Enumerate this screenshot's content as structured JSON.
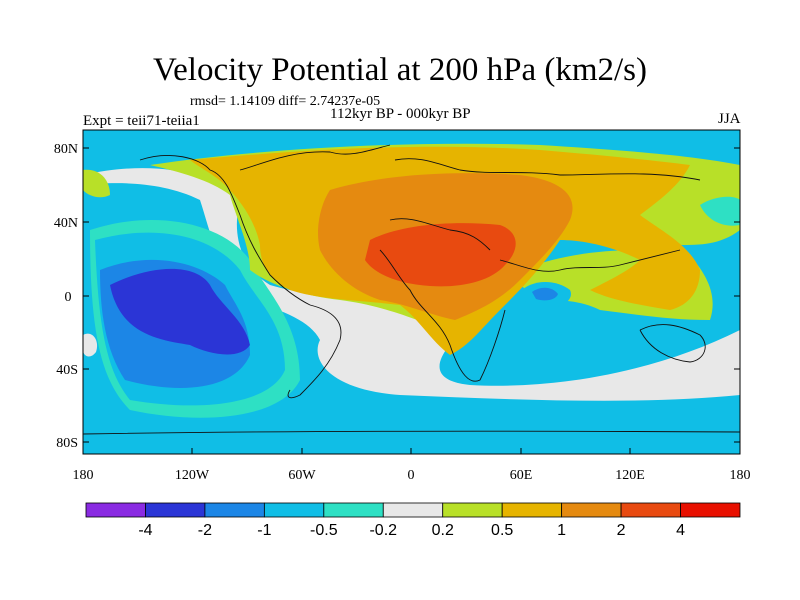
{
  "title": "Velocity Potential at 200 hPa (km2/s)",
  "stats_line": "rmsd= 1.14109 diff= 2.74237e-05",
  "subtitle": "112kyr BP - 000kyr BP",
  "left_label": "Expt = teii71-teiia1",
  "right_label": "JJA",
  "map": {
    "projection": "cylindrical-equidistant",
    "lat_ticks": [
      "80N",
      "40N",
      "0",
      "40S",
      "80S"
    ],
    "lon_ticks": [
      "180",
      "120W",
      "60W",
      "0",
      "60E",
      "120E",
      "180"
    ]
  },
  "colorbar": {
    "levels": [
      "-4",
      "-2",
      "-1",
      "-0.5",
      "-0.2",
      "0.2",
      "0.5",
      "1",
      "2",
      "4"
    ],
    "colors": [
      "#8a2be2",
      "#2b35d6",
      "#1c86e6",
      "#10bee6",
      "#2ee0c4",
      "#e8e8e8",
      "#b8e028",
      "#e6b400",
      "#e58a10",
      "#e84a10",
      "#e81000"
    ]
  }
}
